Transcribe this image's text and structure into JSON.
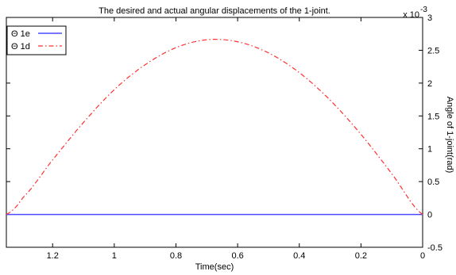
{
  "chart_data": {
    "type": "line",
    "title": "The desired and actual angular displacements of the 1-joint.",
    "xlabel": "Time(sec)",
    "ylabel": "Angle of 1-joint(rad)",
    "y_multiplier": "x 10",
    "y_multiplier_exp": "-3",
    "x_reversed": true,
    "xlim": [
      0,
      1.35
    ],
    "ylim": [
      -0.5,
      3
    ],
    "x_ticks": [
      0,
      0.2,
      0.4,
      0.6,
      0.8,
      1,
      1.2
    ],
    "x_tick_labels": [
      "0",
      "0.2",
      "0.4",
      "0.6",
      "0.8",
      "1",
      "1.2"
    ],
    "y_ticks": [
      -0.5,
      0,
      0.5,
      1,
      1.5,
      2,
      2.5,
      3
    ],
    "y_tick_labels": [
      "-0.5",
      "0",
      "0.5",
      "1",
      "1.5",
      "2",
      "2.5",
      "3"
    ],
    "legend_position": "top-left",
    "grid": false,
    "series": [
      {
        "name": "Θ 1e",
        "color": "#4a4aff",
        "style": "solid",
        "x": [
          0,
          0.225,
          0.45,
          0.675,
          0.9,
          1.125,
          1.35
        ],
        "y": [
          0,
          0,
          0,
          0,
          0,
          0,
          0
        ]
      },
      {
        "name": "Θ 1d",
        "color": "#ff3030",
        "style": "dashdot",
        "x": [
          0,
          0.1,
          0.2,
          0.3,
          0.4,
          0.5,
          0.6,
          0.7,
          0.8,
          0.9,
          1.0,
          1.1,
          1.2,
          1.3,
          1.35
        ],
        "y": [
          0,
          0.62,
          1.22,
          1.74,
          2.16,
          2.46,
          2.63,
          2.66,
          2.54,
          2.28,
          1.9,
          1.4,
          0.83,
          0.24,
          0
        ]
      }
    ]
  }
}
